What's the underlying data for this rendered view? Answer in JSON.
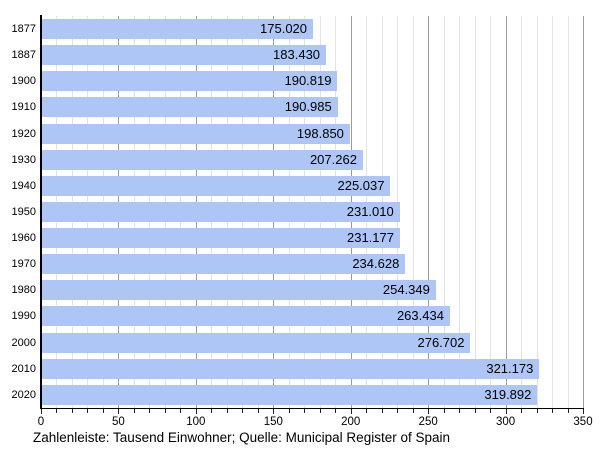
{
  "caption": "Zahlenleiste: Tausend Einwohner; Quelle: Municipal Register of Spain",
  "chart_data": {
    "type": "bar",
    "orientation": "horizontal",
    "title": "",
    "xlabel": "",
    "ylabel": "",
    "unit": "Tausend Einwohner",
    "source": "Municipal Register of Spain",
    "categories": [
      "1877",
      "1887",
      "1900",
      "1910",
      "1920",
      "1930",
      "1940",
      "1950",
      "1960",
      "1970",
      "1980",
      "1990",
      "2000",
      "2010",
      "2020"
    ],
    "values": [
      175.02,
      183.43,
      190.819,
      190.985,
      198.85,
      207.262,
      225.037,
      231.01,
      231.177,
      234.628,
      254.349,
      263.434,
      276.702,
      321.173,
      319.892
    ],
    "value_labels": [
      "175.020",
      "183.430",
      "190.819",
      "190.985",
      "198.850",
      "207.262",
      "225.037",
      "231.010",
      "231.177",
      "234.628",
      "254.349",
      "263.434",
      "276.702",
      "321.173",
      "319.892"
    ],
    "xlim": [
      0,
      350
    ],
    "x_major_ticks": [
      0,
      50,
      100,
      150,
      200,
      250,
      300,
      350
    ],
    "x_minor_step": 10,
    "grid": "vertical, minor every 10 (light), major every 50 (dark)",
    "legend": "none",
    "colors": {
      "bar_fill": "#adc6f5",
      "grid_minor": "#e3e3e3",
      "grid_major": "#9c9c9c",
      "axis": "#000000",
      "text": "#000000",
      "background": "#ffffff"
    }
  }
}
